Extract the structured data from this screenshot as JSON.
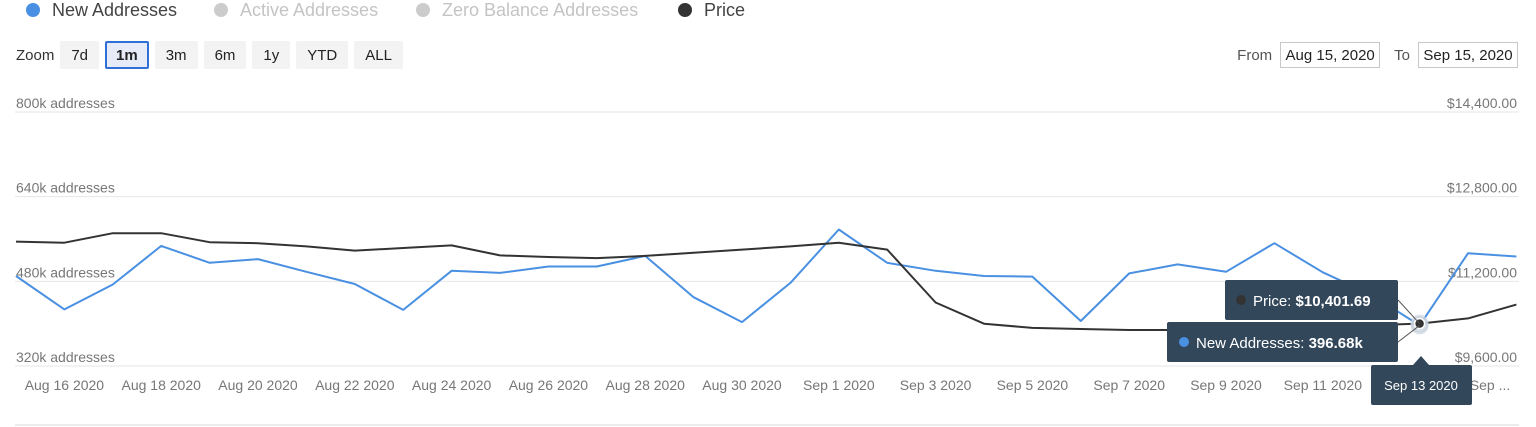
{
  "legend": [
    {
      "label": "New Addresses",
      "color": "#4a90e2",
      "active": true
    },
    {
      "label": "Active Addresses",
      "color": "#cccccc",
      "active": false
    },
    {
      "label": "Zero Balance Addresses",
      "color": "#cccccc",
      "active": false
    },
    {
      "label": "Price",
      "color": "#333333",
      "active": true
    }
  ],
  "zoom": {
    "label": "Zoom",
    "options": [
      "7d",
      "1m",
      "3m",
      "6m",
      "1y",
      "YTD",
      "ALL"
    ],
    "selected": "1m"
  },
  "range": {
    "from_label": "From",
    "from_value": "Aug 15, 2020",
    "to_label": "To",
    "to_value": "Sep 15, 2020"
  },
  "tooltip": {
    "price_label": "Price: ",
    "price_value": "$10,401.69",
    "addresses_label": "New Addresses: ",
    "addresses_value": "396.68k",
    "date": "Sep 13 2020"
  },
  "colors": {
    "new_addresses": "#4a90e2",
    "price": "#333333",
    "tooltip_bg": "#33475b",
    "grid": "#e6e6e6"
  },
  "chart_data": {
    "type": "line",
    "x": [
      "Aug 15 2020",
      "Aug 16 2020",
      "Aug 17 2020",
      "Aug 18 2020",
      "Aug 19 2020",
      "Aug 20 2020",
      "Aug 21 2020",
      "Aug 22 2020",
      "Aug 23 2020",
      "Aug 24 2020",
      "Aug 25 2020",
      "Aug 26 2020",
      "Aug 27 2020",
      "Aug 28 2020",
      "Aug 29 2020",
      "Aug 30 2020",
      "Aug 31 2020",
      "Sep 1 2020",
      "Sep 2 2020",
      "Sep 3 2020",
      "Sep 4 2020",
      "Sep 5 2020",
      "Sep 6 2020",
      "Sep 7 2020",
      "Sep 8 2020",
      "Sep 9 2020",
      "Sep 10 2020",
      "Sep 11 2020",
      "Sep 12 2020",
      "Sep 13 2020",
      "Sep 14 2020",
      "Sep 15 2020"
    ],
    "x_tick_labels": [
      "Aug 16 2020",
      "Aug 18 2020",
      "Aug 20 2020",
      "Aug 22 2020",
      "Aug 24 2020",
      "Aug 26 2020",
      "Aug 28 2020",
      "Aug 30 2020",
      "Sep 1 2020",
      "Sep 3 2020",
      "Sep 5 2020",
      "Sep 7 2020",
      "Sep 9 2020",
      "Sep 11 2020",
      "",
      "Sep ..."
    ],
    "series": [
      {
        "name": "New Addresses",
        "axis": "left",
        "color": "#4a90e2",
        "values": [
          490000,
          427000,
          474000,
          547000,
          515000,
          522000,
          498000,
          475000,
          426000,
          500000,
          496000,
          508000,
          508000,
          528000,
          450000,
          403000,
          477000,
          578000,
          515000,
          500000,
          490000,
          489000,
          405000,
          495000,
          512000,
          498000,
          552000,
          497000,
          455000,
          396680,
          533000,
          527000
        ]
      },
      {
        "name": "Price",
        "axis": "right",
        "color": "#333333",
        "values": [
          11950,
          11930,
          12110,
          12110,
          11940,
          11920,
          11860,
          11780,
          11830,
          11880,
          11690,
          11660,
          11640,
          11680,
          11740,
          11800,
          11860,
          11930,
          11800,
          10800,
          10400,
          10320,
          10300,
          10280,
          10280,
          10300,
          10310,
          10340,
          10370,
          10401.69,
          10500,
          10760
        ]
      }
    ],
    "y_left": {
      "ticks": [
        "800k addresses",
        "640k addresses",
        "480k addresses",
        "320k addresses"
      ],
      "range": [
        320000,
        800000
      ]
    },
    "y_right": {
      "ticks": [
        "$14,400.00",
        "$12,800.00",
        "$11,200.00",
        "$9,600.00"
      ],
      "range": [
        9600,
        14400
      ]
    },
    "grid": true,
    "legend_position": "top-left"
  }
}
